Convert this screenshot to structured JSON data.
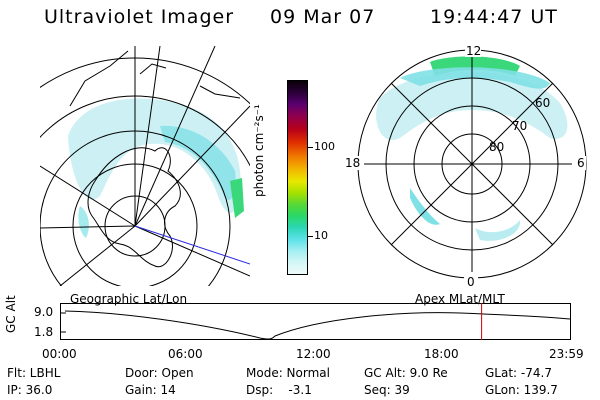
{
  "header": {
    "instrument": "Ultraviolet Imager",
    "date": "09 Mar 07",
    "time": "19:44:47 UT"
  },
  "colorbar": {
    "unit_label": "photon cm⁻²s⁻¹",
    "ticks": [
      "100",
      "10"
    ]
  },
  "polar_plot": {
    "mlt_labels": [
      "12",
      "18",
      "6",
      "0"
    ],
    "lat_labels": [
      "60",
      "70",
      "80"
    ]
  },
  "timeline": {
    "left_caption": "Geographic Lat/Lon",
    "right_caption": "Apex MLat/MLT",
    "y_axis_label": "GC Alt",
    "y_ticks": [
      "9.0",
      "1.8"
    ],
    "x_ticks": [
      "00:00",
      "06:00",
      "12:00",
      "18:00",
      "23:59"
    ],
    "current_time_fraction": 0.8257,
    "marker_color": "#cc0000"
  },
  "info": {
    "flt": "Flt: LBHL",
    "ip": "IP: 36.0",
    "door": "Door: Open",
    "gain": "Gain: 14",
    "mode": "Mode: Normal",
    "dsp": "Dsp:    -3.1",
    "gcalt": "GC Alt: 9.0 Re",
    "seq": "Seq: 39",
    "glat": "GLat: -74.7",
    "glon": "GLon: 139.7"
  }
}
